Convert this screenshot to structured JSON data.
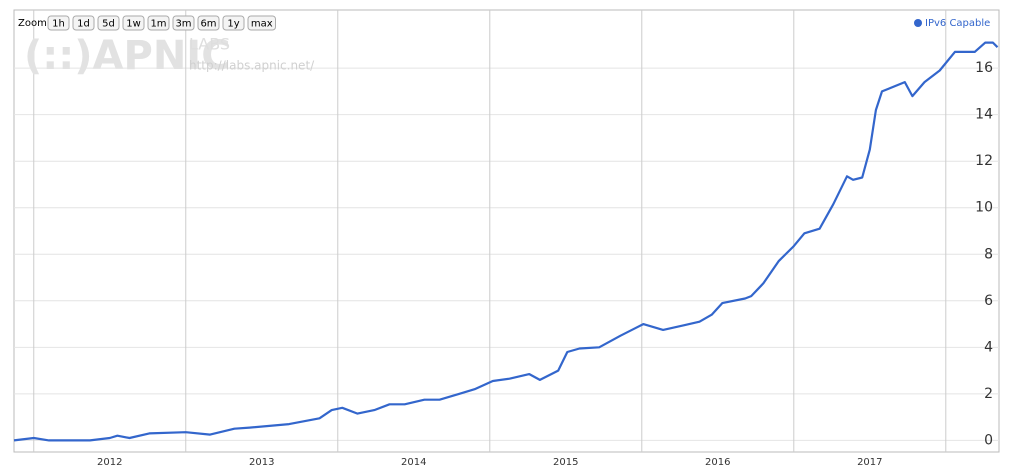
{
  "chart_data": {
    "type": "line",
    "zoom_label": "Zoom:",
    "zoom_buttons": [
      "1h",
      "1d",
      "5d",
      "1w",
      "1m",
      "3m",
      "6m",
      "1y",
      "max"
    ],
    "watermark": {
      "logo": "(::)APNIC",
      "labs": "LABS",
      "url": "http://labs.apnic.net/"
    },
    "x": [
      2011.87,
      2012.0,
      2012.1,
      2012.37,
      2012.5,
      2012.55,
      2012.63,
      2012.76,
      2013.0,
      2013.16,
      2013.32,
      2013.42,
      2013.68,
      2013.88,
      2013.96,
      2014.03,
      2014.13,
      2014.24,
      2014.34,
      2014.44,
      2014.57,
      2014.67,
      2014.8,
      2014.9,
      2015.02,
      2015.13,
      2015.26,
      2015.33,
      2015.45,
      2015.51,
      2015.59,
      2015.72,
      2015.86,
      2016.01,
      2016.14,
      2016.28,
      2016.38,
      2016.46,
      2016.53,
      2016.68,
      2016.72,
      2016.8,
      2016.9,
      2017.0,
      2017.07,
      2017.17,
      2017.26,
      2017.35,
      2017.39,
      2017.45,
      2017.5,
      2017.54,
      2017.58,
      2017.73,
      2017.78,
      2017.86,
      2017.96,
      2018.06,
      2018.19,
      2018.26,
      2018.31,
      2018.34
    ],
    "series": [
      {
        "name": "IPv6 Capable",
        "color": "#3366cc",
        "values": [
          0.0,
          0.1,
          0.0,
          0.0,
          0.1,
          0.2,
          0.1,
          0.3,
          0.35,
          0.25,
          0.5,
          0.55,
          0.7,
          0.95,
          1.3,
          1.4,
          1.15,
          1.3,
          1.55,
          1.55,
          1.75,
          1.75,
          2.0,
          2.2,
          2.55,
          2.65,
          2.85,
          2.6,
          3.0,
          3.8,
          3.95,
          4.0,
          4.5,
          5.0,
          4.75,
          4.95,
          5.1,
          5.4,
          5.9,
          6.1,
          6.2,
          6.75,
          7.7,
          8.35,
          8.9,
          9.1,
          10.15,
          11.35,
          11.2,
          11.3,
          12.5,
          14.2,
          15.0,
          15.4,
          14.8,
          15.4,
          15.9,
          16.7,
          16.7,
          17.1,
          17.1,
          16.9
        ]
      }
    ],
    "xlim": [
      2011.87,
      2018.35
    ],
    "xgrid": [
      2012,
      2013,
      2014,
      2015,
      2016,
      2017,
      2018
    ],
    "xticks": [
      2012,
      2013,
      2014,
      2015,
      2016,
      2017
    ],
    "ylim": [
      -0.5,
      18.5
    ],
    "yticks": [
      0,
      2,
      4,
      6,
      8,
      10,
      12,
      14,
      16
    ],
    "grid": true,
    "legend": "top-right"
  }
}
